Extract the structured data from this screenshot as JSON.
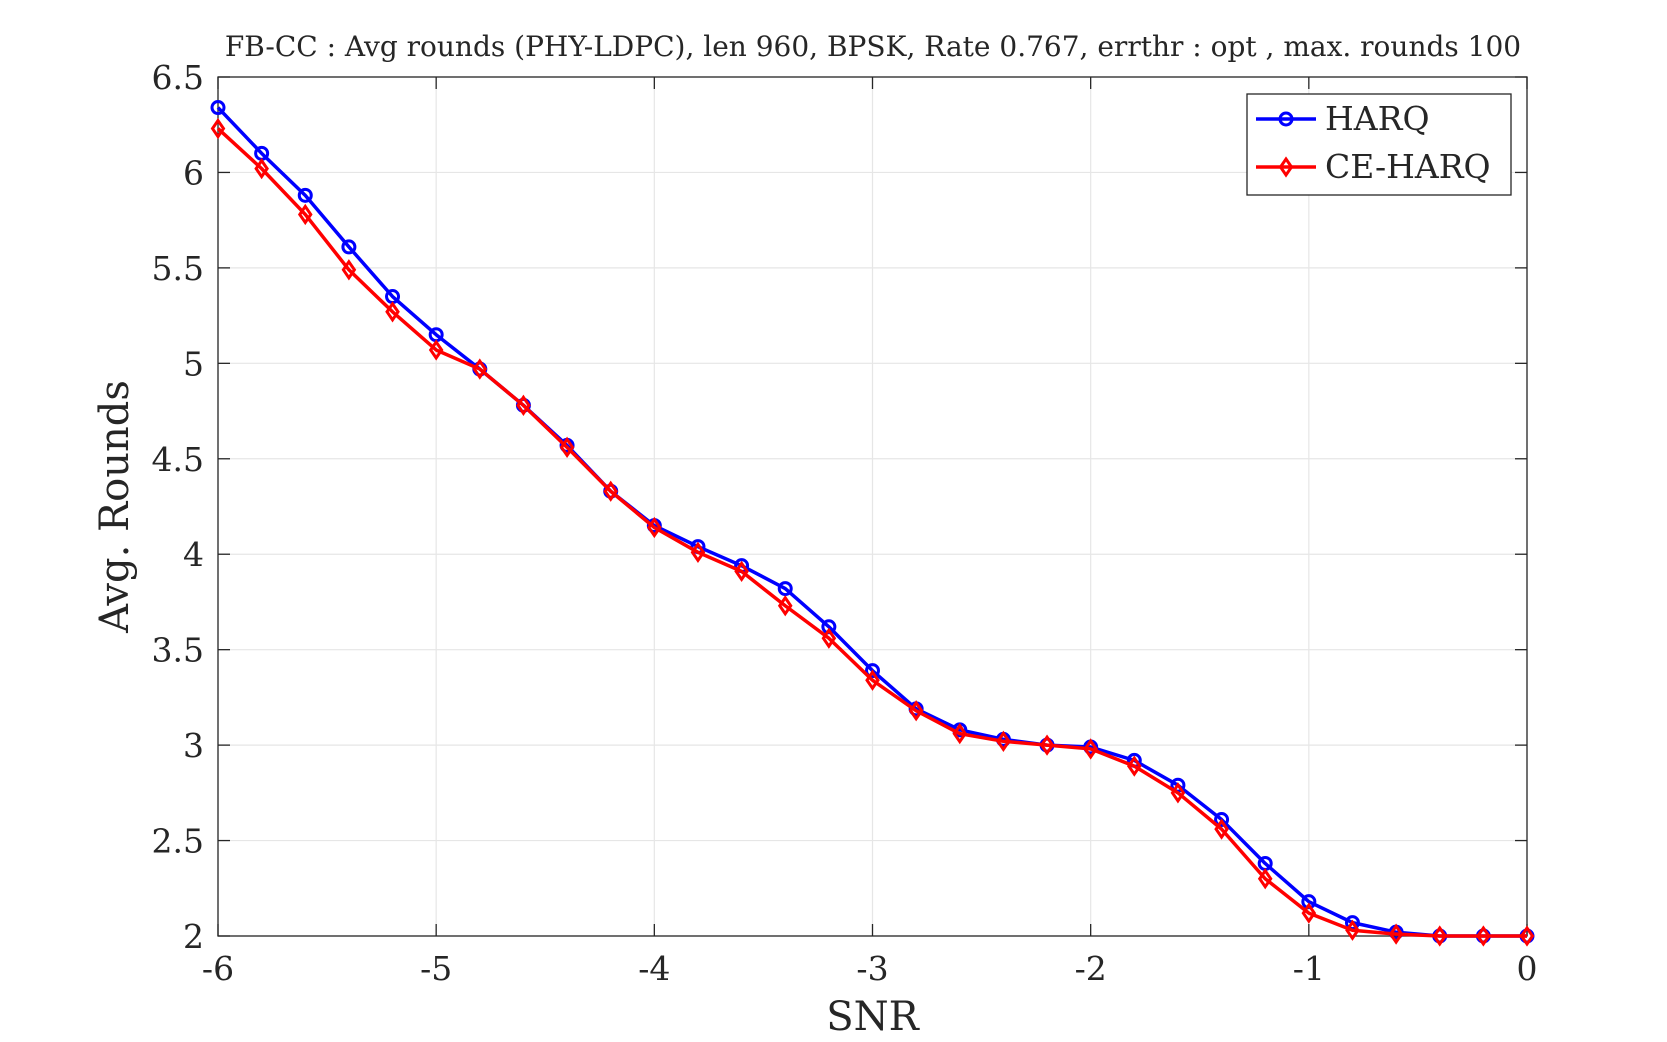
{
  "chart_data": {
    "type": "line",
    "title": "FB-CC : Avg rounds (PHY-LDPC), len 960, BPSK, Rate 0.767, errthr : opt , max. rounds 100",
    "xlabel": "SNR",
    "ylabel": "Avg. Rounds",
    "xlim": [
      -6,
      0
    ],
    "ylim": [
      2,
      6.5
    ],
    "xticks": [
      -6,
      -5,
      -4,
      -3,
      -2,
      -1,
      0
    ],
    "xtick_labels": [
      "-6",
      "-5",
      "-4",
      "-3",
      "-2",
      "-1",
      "0"
    ],
    "yticks": [
      2,
      2.5,
      3,
      3.5,
      4,
      4.5,
      5,
      5.5,
      6,
      6.5
    ],
    "ytick_labels": [
      "2",
      "2.5",
      "3",
      "3.5",
      "4",
      "4.5",
      "5",
      "5.5",
      "6",
      "6.5"
    ],
    "grid": true,
    "legend_position": "top-right",
    "x": [
      -6,
      -5.8,
      -5.6,
      -5.4,
      -5.2,
      -5,
      -4.8,
      -4.6,
      -4.4,
      -4.2,
      -4,
      -3.8,
      -3.6,
      -3.4,
      -3.2,
      -3,
      -2.8,
      -2.6,
      -2.4,
      -2.2,
      -2,
      -1.8,
      -1.6,
      -1.4,
      -1.2,
      -1,
      -0.8,
      -0.6,
      -0.4,
      -0.2,
      0
    ],
    "series": [
      {
        "name": "HARQ",
        "color": "#0000ff",
        "marker": "circle",
        "values": [
          6.34,
          6.1,
          5.88,
          5.61,
          5.35,
          5.15,
          4.97,
          4.78,
          4.57,
          4.33,
          4.15,
          4.04,
          3.94,
          3.82,
          3.62,
          3.39,
          3.19,
          3.08,
          3.03,
          3.0,
          2.99,
          2.92,
          2.79,
          2.61,
          2.38,
          2.18,
          2.07,
          2.02,
          2.0,
          2.0,
          2.0
        ]
      },
      {
        "name": "CE-HARQ",
        "color": "#ff0000",
        "marker": "diamond",
        "values": [
          6.23,
          6.02,
          5.78,
          5.49,
          5.27,
          5.07,
          4.97,
          4.78,
          4.56,
          4.33,
          4.14,
          4.01,
          3.91,
          3.73,
          3.56,
          3.34,
          3.18,
          3.06,
          3.02,
          3.0,
          2.98,
          2.89,
          2.75,
          2.56,
          2.3,
          2.12,
          2.03,
          2.01,
          2.0,
          2.0,
          2.0
        ]
      }
    ]
  }
}
